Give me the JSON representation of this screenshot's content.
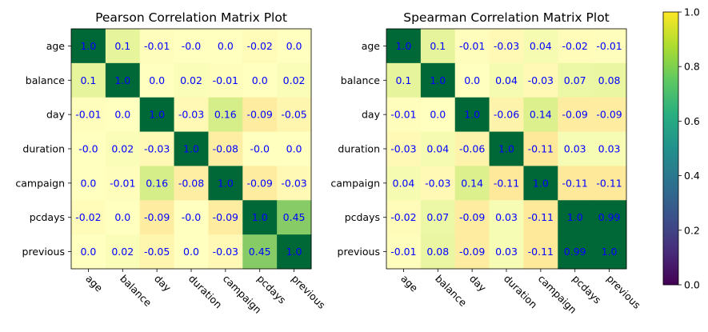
{
  "chart_data": [
    {
      "type": "heatmap",
      "title": "Pearson Correlation Matrix Plot",
      "labels": [
        "age",
        "balance",
        "day",
        "duration",
        "campaign",
        "pcdays",
        "previous"
      ],
      "values": [
        [
          "1.0",
          "0.1",
          "-0.01",
          "-0.0",
          "0.0",
          "-0.02",
          "0.0"
        ],
        [
          "0.1",
          "1.0",
          "0.0",
          "0.02",
          "-0.01",
          "0.0",
          "0.02"
        ],
        [
          "-0.01",
          "0.0",
          "1.0",
          "-0.03",
          "0.16",
          "-0.09",
          "-0.05"
        ],
        [
          "-0.0",
          "0.02",
          "-0.03",
          "1.0",
          "-0.08",
          "-0.0",
          "0.0"
        ],
        [
          "0.0",
          "-0.01",
          "0.16",
          "-0.08",
          "1.0",
          "-0.09",
          "-0.03"
        ],
        [
          "-0.02",
          "0.0",
          "-0.09",
          "-0.0",
          "-0.09",
          "1.0",
          "0.45"
        ],
        [
          "0.0",
          "0.02",
          "-0.05",
          "0.0",
          "-0.03",
          "0.45",
          "1.0"
        ]
      ],
      "colormap": "RdYlGn-style",
      "annotation_color": "#0000ff"
    },
    {
      "type": "heatmap",
      "title": "Spearman Correlation Matrix Plot",
      "labels": [
        "age",
        "balance",
        "day",
        "duration",
        "campaign",
        "pcdays",
        "previous"
      ],
      "values": [
        [
          "1.0",
          "0.1",
          "-0.01",
          "-0.03",
          "0.04",
          "-0.02",
          "-0.01"
        ],
        [
          "0.1",
          "1.0",
          "0.0",
          "0.04",
          "-0.03",
          "0.07",
          "0.08"
        ],
        [
          "-0.01",
          "0.0",
          "1.0",
          "-0.06",
          "0.14",
          "-0.09",
          "-0.09"
        ],
        [
          "-0.03",
          "0.04",
          "-0.06",
          "1.0",
          "-0.11",
          "0.03",
          "0.03"
        ],
        [
          "0.04",
          "-0.03",
          "0.14",
          "-0.11",
          "1.0",
          "-0.11",
          "-0.11"
        ],
        [
          "-0.02",
          "0.07",
          "-0.09",
          "0.03",
          "-0.11",
          "1.0",
          "0.99"
        ],
        [
          "-0.01",
          "0.08",
          "-0.09",
          "0.03",
          "-0.11",
          "0.99",
          "1.0"
        ]
      ],
      "colormap": "RdYlGn-style",
      "annotation_color": "#0000ff"
    }
  ],
  "colorbar": {
    "colormap": "viridis",
    "range": [
      0,
      1
    ],
    "ticks": [
      "0.0",
      "0.2",
      "0.4",
      "0.6",
      "0.8",
      "1.0"
    ]
  }
}
